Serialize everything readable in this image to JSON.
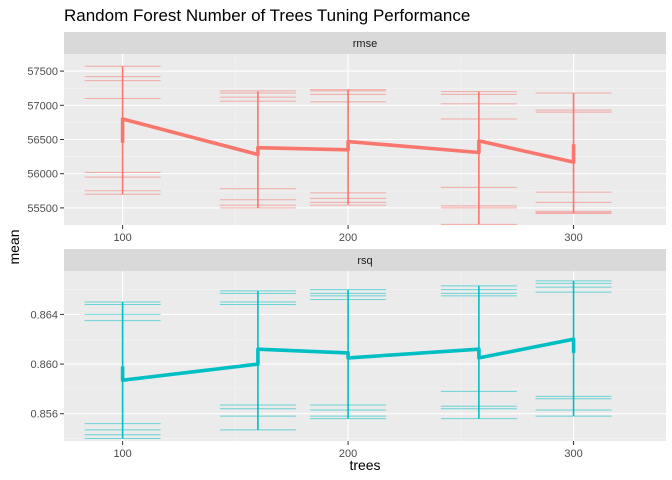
{
  "chart_data": {
    "type": "line",
    "title": "Random Forest Number of Trees Tuning Performance",
    "xlabel": "trees",
    "ylabel": "mean",
    "x_ticks": [
      100,
      200,
      300
    ],
    "xlim": [
      74,
      341
    ],
    "grid": true,
    "facets": [
      {
        "label": "rmse",
        "color": "#F8766D",
        "ylim": [
          55250,
          57750
        ],
        "y_ticks": [
          55500,
          56000,
          56500,
          57000,
          57500
        ],
        "y_tick_labels": [
          "55500",
          "56000",
          "56500",
          "57000",
          "57500"
        ],
        "x": [
          100,
          160,
          200,
          258,
          300
        ],
        "mean": [
          56800,
          56380,
          56470,
          56480,
          56170
        ],
        "min": [
          55700,
          55500,
          55550,
          55260,
          55420
        ],
        "max": [
          57570,
          57200,
          57230,
          57200,
          57180
        ],
        "line_path": [
          [
            100,
            56450
          ],
          [
            100,
            56800
          ],
          [
            160,
            56280
          ],
          [
            160,
            56380
          ],
          [
            200,
            56350
          ],
          [
            200,
            56470
          ],
          [
            258,
            56310
          ],
          [
            258,
            56480
          ],
          [
            300,
            56170
          ],
          [
            300,
            56430
          ]
        ],
        "hlines": [
          [
            57570,
            57420,
            57360,
            57100,
            56020,
            55950,
            55750,
            55700
          ],
          [
            57210,
            57180,
            57120,
            57060,
            55780,
            55620,
            55540,
            55500
          ],
          [
            57230,
            57210,
            57160,
            57050,
            55720,
            55640,
            55580,
            55540
          ],
          [
            57200,
            57160,
            57020,
            56800,
            55800,
            55530,
            55500,
            55260
          ],
          [
            57180,
            56930,
            56900,
            55730,
            55580,
            55450,
            55430,
            55420
          ]
        ]
      },
      {
        "label": "rsq",
        "color": "#00BFC4",
        "ylim": [
          0.8538,
          0.8675
        ],
        "y_ticks": [
          0.856,
          0.86,
          0.864
        ],
        "y_tick_labels": [
          "0.856",
          "0.860",
          "0.864"
        ],
        "x": [
          100,
          160,
          200,
          258,
          300
        ],
        "mean": [
          0.8587,
          0.8611,
          0.8605,
          0.8611,
          0.862
        ],
        "min": [
          0.854,
          0.8547,
          0.8556,
          0.8556,
          0.8558
        ],
        "max": [
          0.865,
          0.8659,
          0.866,
          0.8663,
          0.8667
        ],
        "line_path": [
          [
            100,
            0.8598
          ],
          [
            100,
            0.8587
          ],
          [
            160,
            0.86
          ],
          [
            160,
            0.8612
          ],
          [
            200,
            0.8609
          ],
          [
            200,
            0.8605
          ],
          [
            258,
            0.8612
          ],
          [
            258,
            0.8605
          ],
          [
            300,
            0.862
          ],
          [
            300,
            0.8609
          ]
        ],
        "hlines": [
          [
            0.865,
            0.8648,
            0.864,
            0.8635,
            0.8552,
            0.8547,
            0.8543,
            0.854
          ],
          [
            0.8659,
            0.8657,
            0.865,
            0.8648,
            0.8567,
            0.8564,
            0.8558,
            0.8547
          ],
          [
            0.866,
            0.8657,
            0.8655,
            0.8652,
            0.8567,
            0.8563,
            0.8558,
            0.8556
          ],
          [
            0.8663,
            0.866,
            0.8657,
            0.8655,
            0.8578,
            0.8566,
            0.8564,
            0.8556
          ],
          [
            0.8667,
            0.8665,
            0.8662,
            0.8658,
            0.8574,
            0.8572,
            0.8563,
            0.8558
          ]
        ]
      }
    ]
  }
}
